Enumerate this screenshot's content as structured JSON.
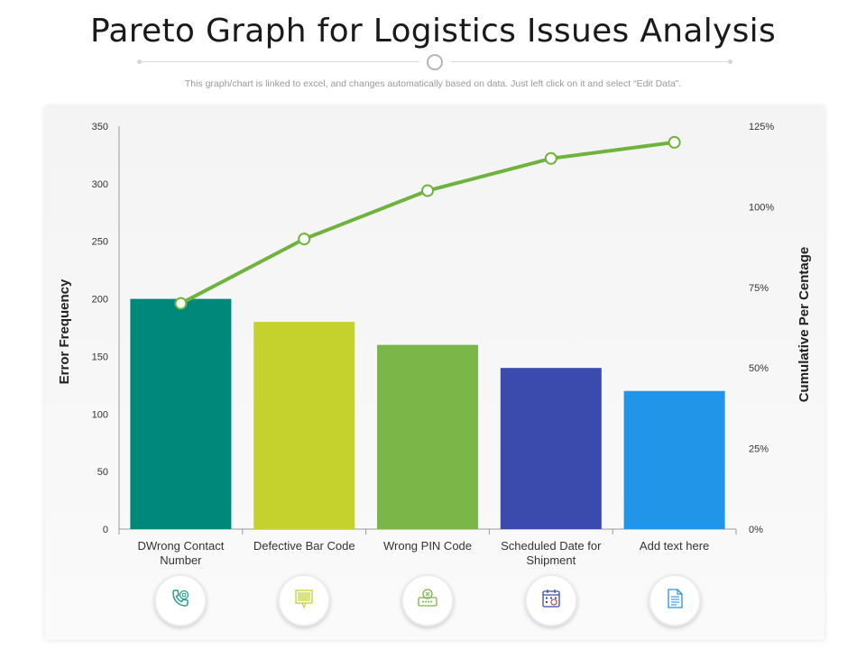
{
  "page": {
    "title": "Pareto Graph for Logistics Issues Analysis",
    "subtitle": "This graph/chart is linked to excel,  and changes automatically based on data. Just left click on it and select “Edit Data”."
  },
  "icons": [
    {
      "name": "phone-icon",
      "color": "#2a9d8f"
    },
    {
      "name": "barcode-icon",
      "color": "#c5d22e"
    },
    {
      "name": "pin-code-icon",
      "color": "#7ab648"
    },
    {
      "name": "calendar-icon",
      "color": "#3a4bad"
    },
    {
      "name": "document-icon",
      "color": "#2a90e0"
    }
  ],
  "chart_data": {
    "type": "bar",
    "categories": [
      "DWrong Contact Number",
      "Defective Bar Code",
      "Wrong PIN Code",
      "Scheduled Date for Shipment",
      "Add text here"
    ],
    "category_lines": [
      [
        "DWrong Contact",
        "Number"
      ],
      [
        "Defective Bar Code"
      ],
      [
        "Wrong PIN Code"
      ],
      [
        "Scheduled Date for",
        "Shipment"
      ],
      [
        "Add text here"
      ]
    ],
    "values": [
      200,
      180,
      160,
      140,
      120
    ],
    "bar_colors": [
      "#00897b",
      "#c5d22e",
      "#7ab648",
      "#3a4bad",
      "#2196e8"
    ],
    "line": {
      "values": [
        70,
        90,
        105,
        115,
        120
      ],
      "color": "#6fb33f"
    },
    "ylabel": "Error Frequency",
    "y2label": "Cumulative Per Centage",
    "ylim": [
      0,
      350
    ],
    "y_ticks": [
      0,
      50,
      100,
      150,
      200,
      250,
      300,
      350
    ],
    "y2lim": [
      0,
      125
    ],
    "y2_ticks": [
      "0%",
      "25%",
      "50%",
      "75%",
      "100%",
      "125%"
    ],
    "y2_tick_values": [
      0,
      25,
      50,
      75,
      100,
      125
    ],
    "grid": false,
    "legend": "none"
  }
}
